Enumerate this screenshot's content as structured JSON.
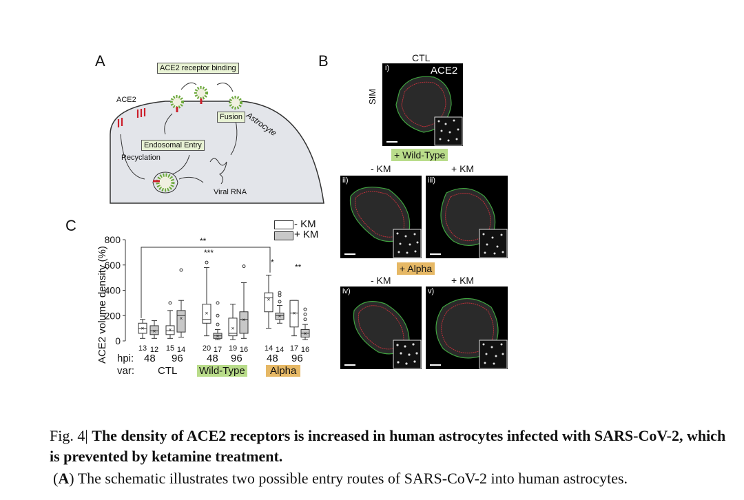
{
  "panelA": {
    "letter": "A",
    "receptor_binding": "ACE2 receptor binding",
    "ace2": "ACE2",
    "fusion": "Fusion",
    "astrocyte": "Astrocyte",
    "endosomal_entry": "Endosomal Entry",
    "recyclation": "Recyclation",
    "viral_rna": "Viral RNA"
  },
  "panelB": {
    "letter": "B",
    "ctl": "CTL",
    "ace2": "ACE2",
    "sim": "SIM",
    "wild_type": "+ Wild-Type",
    "alpha": "+ Alpha",
    "minus_km": "- KM",
    "plus_km": "+ KM",
    "images": [
      {
        "label": "i)"
      },
      {
        "label": "ii)"
      },
      {
        "label": "iii)"
      },
      {
        "label": "iv)"
      },
      {
        "label": "v)"
      }
    ],
    "colors": {
      "green_outline": "#3fa33f",
      "red_outline": "#c0303a",
      "wild_type_tag": "#b9dc8a",
      "alpha_tag": "#e6b865"
    }
  },
  "panelC": {
    "letter": "C",
    "legend": [
      "- KM",
      "+ KM"
    ],
    "ylabel": "ACE2 volume density (%)",
    "hpi_label": "hpi:",
    "var_label": "var:",
    "hpi": [
      "48",
      "96",
      "48",
      "96",
      "48",
      "96"
    ],
    "var": [
      "CTL",
      "Wild-Type",
      "Alpha"
    ],
    "sig_bracket": "**",
    "sig_labels": [
      "***",
      "*",
      "**"
    ]
  },
  "chart_data": {
    "type": "box",
    "ylabel": "ACE2 volume density (%)",
    "ylim": [
      0,
      800
    ],
    "yticks": [
      0,
      200,
      400,
      600,
      800
    ],
    "groups": [
      {
        "hpi": "48",
        "var": "CTL",
        "km": "-",
        "n": "13",
        "q1": 60,
        "median": 100,
        "q3": 140,
        "whisker_low": 20,
        "whisker_high": 170,
        "mean": 100,
        "outliers": []
      },
      {
        "hpi": "48",
        "var": "CTL",
        "km": "+",
        "n": "12",
        "q1": 50,
        "median": 80,
        "q3": 120,
        "whisker_low": 20,
        "whisker_high": 160,
        "mean": 80,
        "outliers": []
      },
      {
        "hpi": "96",
        "var": "CTL",
        "km": "-",
        "n": "15",
        "q1": 50,
        "median": 80,
        "q3": 120,
        "whisker_low": 20,
        "whisker_high": 240,
        "mean": 90,
        "outliers": [
          300
        ]
      },
      {
        "hpi": "96",
        "var": "CTL",
        "km": "+",
        "n": "14",
        "q1": 70,
        "median": 200,
        "q3": 240,
        "whisker_low": 30,
        "whisker_high": 320,
        "mean": 180,
        "outliers": [
          560
        ]
      },
      {
        "hpi": "48",
        "var": "Wild-Type",
        "km": "-",
        "n": "20",
        "q1": 140,
        "median": 170,
        "q3": 290,
        "whisker_low": 40,
        "whisker_high": 580,
        "mean": 220,
        "outliers": [
          620
        ]
      },
      {
        "hpi": "48",
        "var": "Wild-Type",
        "km": "+",
        "n": "17",
        "q1": 20,
        "median": 40,
        "q3": 60,
        "whisker_low": 10,
        "whisker_high": 90,
        "mean": 40,
        "outliers": [
          130,
          200,
          300
        ]
      },
      {
        "hpi": "96",
        "var": "Wild-Type",
        "km": "-",
        "n": "19",
        "q1": 40,
        "median": 60,
        "q3": 180,
        "whisker_low": 10,
        "whisker_high": 290,
        "mean": 100,
        "outliers": []
      },
      {
        "hpi": "96",
        "var": "Wild-Type",
        "km": "+",
        "n": "16",
        "q1": 60,
        "median": 170,
        "q3": 230,
        "whisker_low": 20,
        "whisker_high": 460,
        "mean": 170,
        "outliers": [
          590
        ]
      },
      {
        "hpi": "48",
        "var": "Alpha",
        "km": "-",
        "n": "14",
        "q1": 230,
        "median": 340,
        "q3": 380,
        "whisker_low": 100,
        "whisker_high": 520,
        "mean": 330,
        "outliers": []
      },
      {
        "hpi": "48",
        "var": "Alpha",
        "km": "+",
        "n": "14",
        "q1": 170,
        "median": 200,
        "q3": 220,
        "whisker_low": 140,
        "whisker_high": 280,
        "mean": 200,
        "outliers": [
          310,
          360,
          380
        ]
      },
      {
        "hpi": "96",
        "var": "Alpha",
        "km": "-",
        "n": "17",
        "q1": 110,
        "median": 220,
        "q3": 320,
        "whisker_low": 40,
        "whisker_high": 320,
        "mean": 220,
        "outliers": []
      },
      {
        "hpi": "96",
        "var": "Alpha",
        "km": "+",
        "n": "16",
        "q1": 30,
        "median": 60,
        "q3": 90,
        "whisker_low": 10,
        "whisker_high": 130,
        "mean": 60,
        "outliers": [
          170,
          210,
          250
        ]
      }
    ]
  },
  "caption": {
    "fig_label": "Fig. 4|",
    "title": "The density of ACE2 receptors is increased in human astrocytes infected with SARS-CoV-2, which is prevented by ketamine treatment.",
    "a_label": "A",
    "a_text": "The schematic illustrates two possible entry routes of SARS-CoV-2 into human astrocytes."
  }
}
